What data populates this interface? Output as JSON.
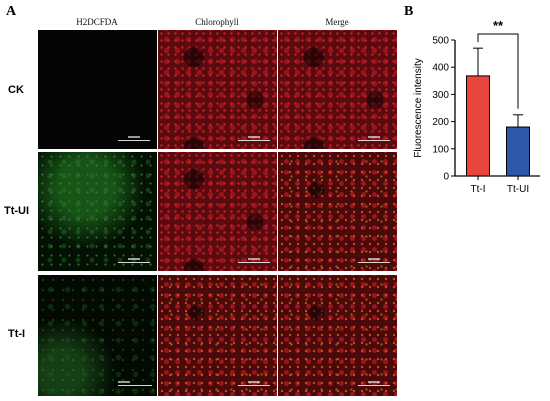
{
  "panel_a": {
    "letter": "A",
    "columns": [
      "H2DCFDA",
      "Chlorophyll",
      "Merge"
    ],
    "rows": [
      "CK",
      "Tt-UI",
      "Tt-I"
    ]
  },
  "panel_b": {
    "letter": "B"
  },
  "chart_data": {
    "type": "bar",
    "categories": [
      "Tt-I",
      "Tt-UI"
    ],
    "values": [
      368,
      180
    ],
    "error_upper": [
      470,
      225
    ],
    "colors": [
      "#e8453c",
      "#2d57a8"
    ],
    "ylabel": "Fluorescence  intensity",
    "xlabel": "",
    "ylim": [
      0,
      500
    ],
    "yticks": [
      0,
      100,
      200,
      300,
      400,
      500
    ],
    "significance": "**",
    "grid": false
  }
}
